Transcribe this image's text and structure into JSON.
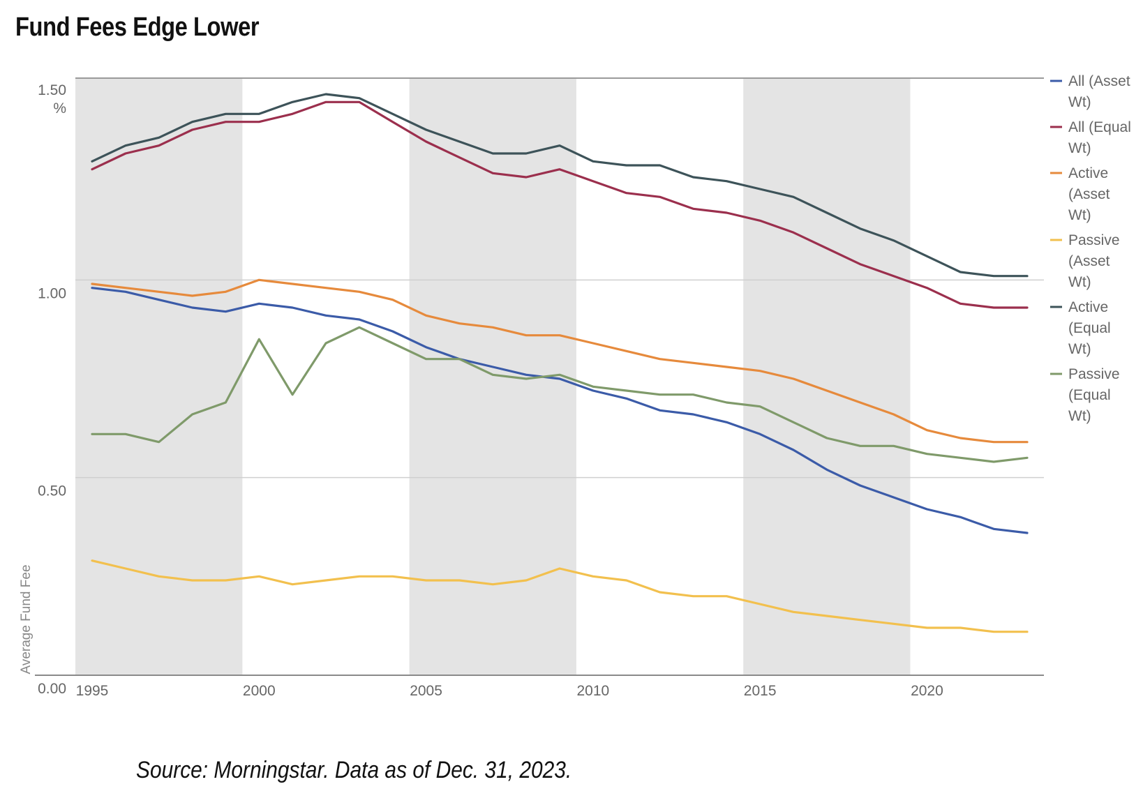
{
  "title": "Fund Fees Edge Lower",
  "source": "Source: Morningstar. Data as of Dec. 31, 2023.",
  "chart_data": {
    "type": "line",
    "title": "Fund Fees Edge Lower",
    "ylabel": "Average Fund Fee",
    "yunit": "%",
    "xlabel": "",
    "xlim": [
      1995,
      2023
    ],
    "ylim": [
      0,
      1.5
    ],
    "x_ticks": [
      1995,
      2000,
      2005,
      2010,
      2015,
      2020
    ],
    "y_ticks": [
      "0.00",
      "0.50",
      "1.00",
      "1.50"
    ],
    "grid": "horizontal",
    "legend_position": "right",
    "shaded_periods": [
      [
        1995,
        1999.5
      ],
      [
        2004.5,
        2009.5
      ],
      [
        2014.5,
        2019.5
      ]
    ],
    "x": [
      1995,
      1996,
      1997,
      1998,
      1999,
      2000,
      2001,
      2002,
      2003,
      2004,
      2005,
      2006,
      2007,
      2008,
      2009,
      2010,
      2011,
      2012,
      2013,
      2014,
      2015,
      2016,
      2017,
      2018,
      2019,
      2020,
      2021,
      2022,
      2023
    ],
    "series": [
      {
        "name": "All (Asset Wt)",
        "color": "#3b5ba8",
        "values": [
          0.98,
          0.97,
          0.95,
          0.93,
          0.92,
          0.94,
          0.93,
          0.91,
          0.9,
          0.87,
          0.83,
          0.8,
          0.78,
          0.76,
          0.75,
          0.72,
          0.7,
          0.67,
          0.66,
          0.64,
          0.61,
          0.57,
          0.52,
          0.48,
          0.45,
          0.42,
          0.4,
          0.37,
          0.36
        ]
      },
      {
        "name": "All (Equal Wt)",
        "color": "#9b2f4d",
        "values": [
          1.28,
          1.32,
          1.34,
          1.38,
          1.4,
          1.4,
          1.42,
          1.45,
          1.45,
          1.4,
          1.35,
          1.31,
          1.27,
          1.26,
          1.28,
          1.25,
          1.22,
          1.21,
          1.18,
          1.17,
          1.15,
          1.12,
          1.08,
          1.04,
          1.01,
          0.98,
          0.94,
          0.93,
          0.93
        ]
      },
      {
        "name": "Active (Asset Wt)",
        "color": "#e68a3c",
        "values": [
          0.99,
          0.98,
          0.97,
          0.96,
          0.97,
          1.0,
          0.99,
          0.98,
          0.97,
          0.95,
          0.91,
          0.89,
          0.88,
          0.86,
          0.86,
          0.84,
          0.82,
          0.8,
          0.79,
          0.78,
          0.77,
          0.75,
          0.72,
          0.69,
          0.66,
          0.62,
          0.6,
          0.59,
          0.59
        ]
      },
      {
        "name": "Passive (Asset Wt)",
        "color": "#f2c04e",
        "values": [
          0.29,
          0.27,
          0.25,
          0.24,
          0.24,
          0.25,
          0.23,
          0.24,
          0.25,
          0.25,
          0.24,
          0.24,
          0.23,
          0.24,
          0.27,
          0.25,
          0.24,
          0.21,
          0.2,
          0.2,
          0.18,
          0.16,
          0.15,
          0.14,
          0.13,
          0.12,
          0.12,
          0.11,
          0.11
        ]
      },
      {
        "name": "Active (Equal Wt)",
        "color": "#3d5359",
        "values": [
          1.3,
          1.34,
          1.36,
          1.4,
          1.42,
          1.42,
          1.45,
          1.47,
          1.46,
          1.42,
          1.38,
          1.35,
          1.32,
          1.32,
          1.34,
          1.3,
          1.29,
          1.29,
          1.26,
          1.25,
          1.23,
          1.21,
          1.17,
          1.13,
          1.1,
          1.06,
          1.02,
          1.01,
          1.01
        ]
      },
      {
        "name": "Passive (Equal Wt)",
        "color": "#7f9a6a",
        "values": [
          0.61,
          0.61,
          0.59,
          0.66,
          0.69,
          0.85,
          0.71,
          0.84,
          0.88,
          0.84,
          0.8,
          0.8,
          0.76,
          0.75,
          0.76,
          0.73,
          0.72,
          0.71,
          0.71,
          0.69,
          0.68,
          0.64,
          0.6,
          0.58,
          0.58,
          0.56,
          0.55,
          0.54,
          0.55
        ]
      }
    ]
  }
}
